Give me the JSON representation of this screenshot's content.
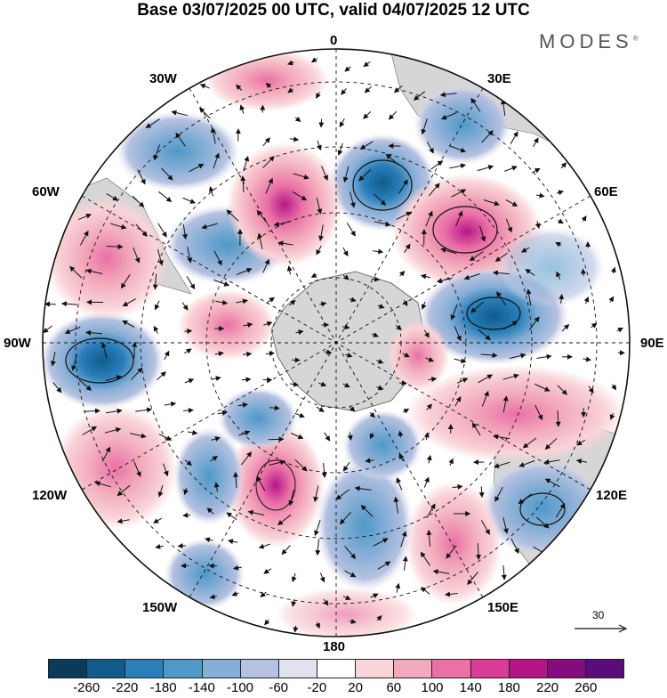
{
  "title": "Base 03/07/2025 00 UTC, valid 04/07/2025 12 UTC",
  "brand": "MODES",
  "brand_mark": "®",
  "longitude_labels": {
    "lon_0": "0",
    "lon_30e": "30E",
    "lon_60e": "60E",
    "lon_90e": "90E",
    "lon_120e": "120E",
    "lon_150e": "150E",
    "lon_180": "180",
    "lon_150w": "150W",
    "lon_120w": "120W",
    "lon_90w": "90W",
    "lon_60w": "60W",
    "lon_30w": "30W"
  },
  "reference_vector": "30",
  "colorbar": {
    "colors": [
      "#0b3a5b",
      "#105b8c",
      "#2a7fba",
      "#4e99c8",
      "#86aed6",
      "#b4c1e0",
      "#e3e3f0",
      "#ffffff",
      "#f9d4d8",
      "#f2a9bb",
      "#ea70a6",
      "#d93d98",
      "#b51687",
      "#870b7f",
      "#5a0c7c"
    ],
    "tick_labels": [
      "-260",
      "-220",
      "-180",
      "-140",
      "-100",
      "-60",
      "-20",
      "20",
      "60",
      "100",
      "140",
      "180",
      "220",
      "260"
    ]
  },
  "colors": {
    "land": "#d6d6d6",
    "grid": "#111111"
  }
}
